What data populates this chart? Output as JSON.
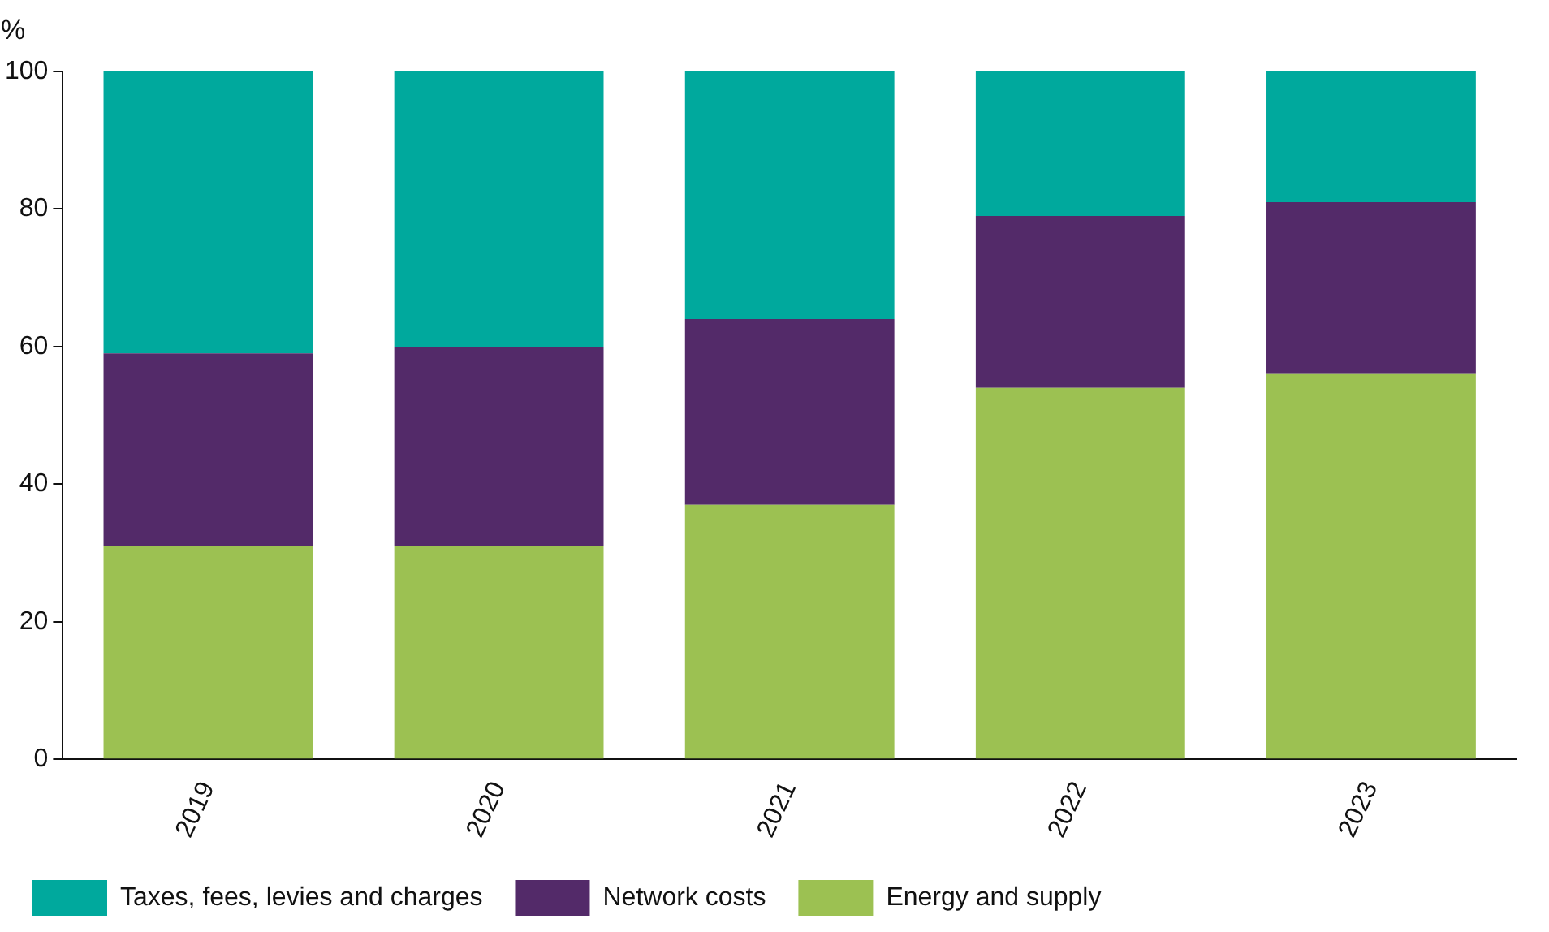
{
  "chart_data": {
    "type": "bar",
    "stacked": true,
    "ylabel": "%",
    "categories": [
      "2019",
      "2020",
      "2021",
      "2022",
      "2023"
    ],
    "series": [
      {
        "name": "Energy and supply",
        "color": "#9cc152",
        "values": [
          31,
          31,
          37,
          54,
          56
        ]
      },
      {
        "name": "Network costs",
        "color": "#532a69",
        "values": [
          28,
          29,
          27,
          25,
          25
        ]
      },
      {
        "name": "Taxes, fees, levies and charges",
        "color": "#00a99d",
        "values": [
          41,
          40,
          36,
          21,
          19
        ]
      }
    ],
    "ylim": [
      0,
      100
    ],
    "yticks": [
      0,
      20,
      40,
      60,
      80,
      100
    ],
    "grid": false,
    "legend": "bottom"
  }
}
